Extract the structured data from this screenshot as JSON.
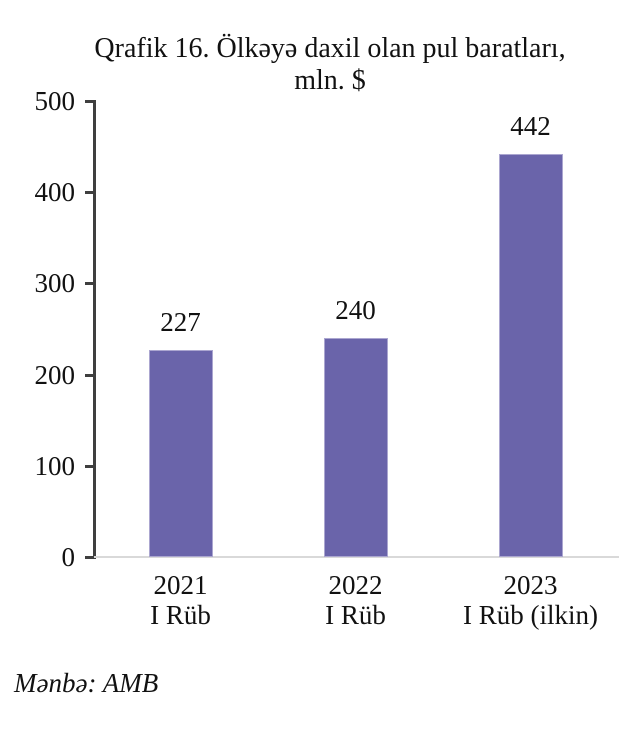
{
  "chart_data": {
    "type": "bar",
    "title": "Qrafik 16. Ölkəyə daxil olan pul baratları, mln. $",
    "title_line1": "Qrafik 16. Ölkəyə daxil olan pul baratları,",
    "title_line2": "mln. $",
    "categories": [
      {
        "year": "2021",
        "period": "I Rüb"
      },
      {
        "year": "2022",
        "period": "I Rüb"
      },
      {
        "year": "2023",
        "period": "I Rüb (ilkin)"
      }
    ],
    "values": [
      227,
      240,
      442
    ],
    "data_labels": [
      "227",
      "240",
      "442"
    ],
    "xlabel": "",
    "ylabel": "",
    "ylim": [
      0,
      500
    ],
    "yticks": [
      "0",
      "100",
      "200",
      "300",
      "400",
      "500"
    ],
    "grid": "off",
    "legend": "none",
    "colors": {
      "bar_fill": "#6A64AA",
      "bar_edge": "#ABA6D0",
      "axis_line": "#3F3F3F",
      "baseline": "#D9D9D9",
      "text": "#111111"
    }
  },
  "source": {
    "text": "Mənbə: AMB"
  }
}
